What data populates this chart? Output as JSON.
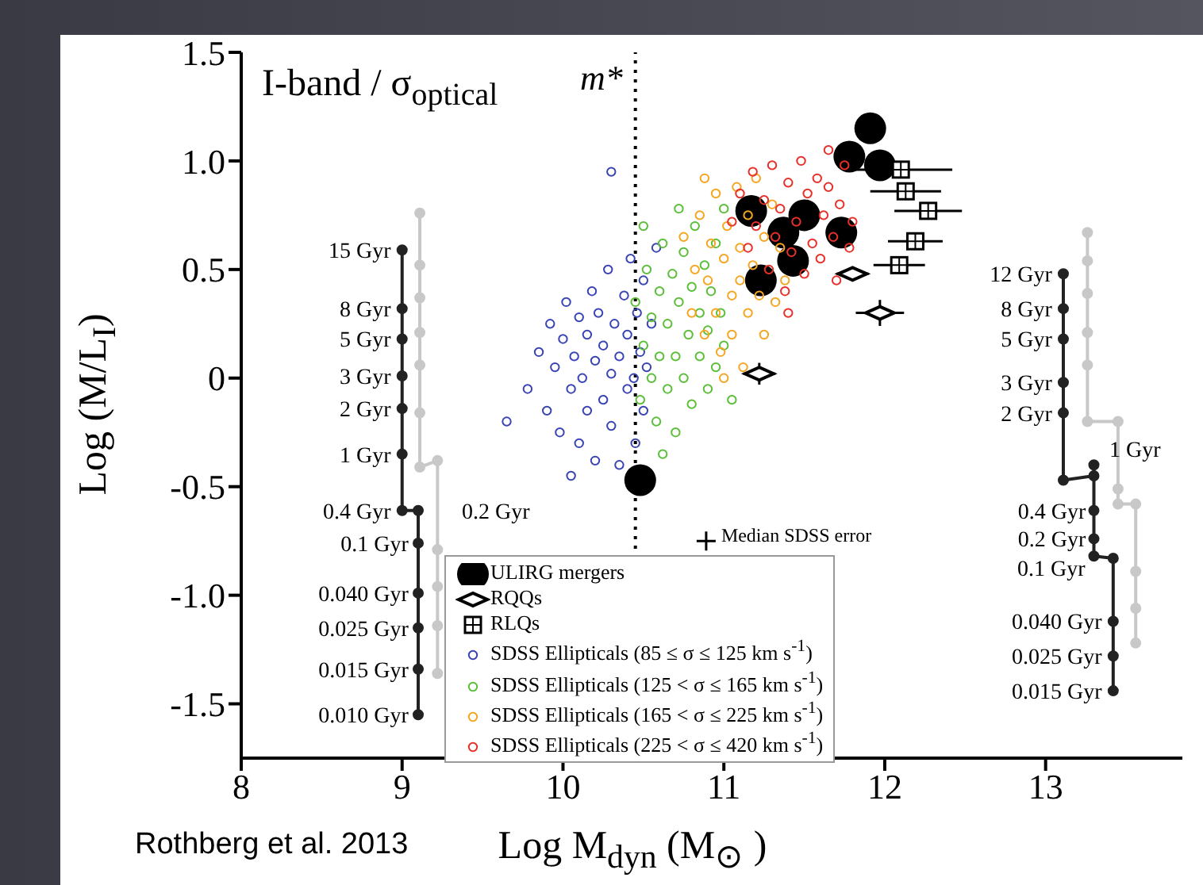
{
  "chart_data": {
    "type": "scatter",
    "title": "I-band / σ$_{optical}$",
    "xlabel": "Log M$_{dyn}$ (M$_{⊙}$ )",
    "ylabel": "Log (M/L$_{I}$)",
    "xlim": [
      8,
      13.85
    ],
    "xticks": [
      8,
      9,
      10,
      11,
      12,
      13
    ],
    "ylim": [
      -1.75,
      1.5
    ],
    "yticks": [
      -1.5,
      {
        "value": -1,
        "label": "-1.0"
      },
      -0.5,
      0,
      0.5,
      {
        "value": 1,
        "label": "1.0"
      },
      1.5
    ],
    "legend": "bottom",
    "ref_lines": [
      {
        "axis": "x",
        "value": 10.45,
        "label": "m*",
        "line_style": "dotted",
        "color": "#000000"
      }
    ],
    "series": [
      {
        "name": "ULIRG mergers",
        "color": "#000000",
        "marker": "circle",
        "x": [
          11.91,
          11.78,
          11.97,
          11.17,
          11.5,
          11.37,
          11.73,
          11.43,
          11.23,
          10.48
        ],
        "values": [
          1.15,
          1.02,
          0.98,
          0.77,
          0.75,
          0.67,
          0.67,
          0.54,
          0.45,
          -0.47
        ]
      },
      {
        "name": "RQQs",
        "color": "#000000",
        "marker": "diamond",
        "x": [
          11.8,
          11.97,
          11.22
        ],
        "values": [
          0.48,
          0.3,
          0.02
        ],
        "xerrors": [
          0.1,
          0.15,
          0.1
        ],
        "errors": [
          null,
          0.06,
          0.05
        ]
      },
      {
        "name": "RLQs",
        "color": "#000000",
        "marker": "square",
        "x": [
          12.1,
          12.13,
          12.27,
          12.19,
          12.09
        ],
        "values": [
          0.96,
          0.86,
          0.77,
          0.63,
          0.52
        ],
        "xerrors": [
          0.32,
          0.22,
          0.21,
          0.17,
          0.16
        ]
      },
      {
        "name": "SDSS Ellipticals (85 ≤ σ ≤ 125 km s$^{-1}$)",
        "color": "#3a45b5",
        "marker": "circle",
        "x": [
          9.78,
          9.85,
          9.9,
          9.92,
          9.95,
          9.98,
          10.0,
          10.02,
          10.05,
          10.07,
          10.1,
          10.1,
          10.12,
          10.15,
          10.15,
          10.18,
          10.2,
          10.2,
          10.22,
          10.25,
          10.25,
          10.28,
          10.3,
          10.3,
          10.32,
          10.35,
          10.35,
          10.38,
          10.4,
          10.4,
          10.42,
          10.44,
          10.45,
          10.46,
          10.48,
          10.5,
          10.5,
          10.52,
          10.55,
          10.58,
          10.3,
          9.65,
          10.05
        ],
        "values": [
          -0.05,
          0.12,
          -0.15,
          0.25,
          0.05,
          -0.25,
          0.18,
          0.35,
          -0.05,
          0.1,
          0.28,
          -0.3,
          0.0,
          0.2,
          -0.15,
          0.4,
          0.08,
          -0.38,
          0.3,
          -0.1,
          0.15,
          0.5,
          0.02,
          -0.22,
          0.25,
          0.1,
          -0.4,
          0.38,
          -0.05,
          0.2,
          0.55,
          0.0,
          -0.3,
          0.3,
          0.12,
          -0.15,
          0.45,
          0.05,
          0.25,
          0.6,
          0.95,
          -0.2,
          -0.45
        ]
      },
      {
        "name": "SDSS Ellipticals (125 < σ ≤ 165 km s$^{-1}$)",
        "color": "#5cbf3a",
        "marker": "circle",
        "x": [
          10.45,
          10.48,
          10.5,
          10.52,
          10.55,
          10.55,
          10.58,
          10.6,
          10.6,
          10.62,
          10.65,
          10.65,
          10.68,
          10.7,
          10.7,
          10.72,
          10.75,
          10.75,
          10.78,
          10.8,
          10.8,
          10.82,
          10.85,
          10.85,
          10.88,
          10.9,
          10.9,
          10.92,
          10.95,
          10.95,
          10.98,
          11.0,
          11.0,
          10.5,
          10.62,
          10.72,
          11.05
        ],
        "values": [
          0.35,
          -0.1,
          0.15,
          0.5,
          0.0,
          0.28,
          -0.2,
          0.4,
          0.1,
          0.62,
          -0.05,
          0.25,
          0.48,
          0.1,
          -0.25,
          0.35,
          0.0,
          0.58,
          0.2,
          0.42,
          -0.12,
          0.7,
          0.1,
          0.3,
          0.52,
          -0.05,
          0.22,
          0.4,
          0.62,
          0.05,
          0.3,
          0.78,
          0.15,
          0.7,
          -0.35,
          0.78,
          -0.1
        ]
      },
      {
        "name": "SDSS Ellipticals (165 < σ ≤ 225 km s$^{-1}$)",
        "color": "#f5a623",
        "marker": "circle",
        "x": [
          10.75,
          10.8,
          10.82,
          10.85,
          10.88,
          10.9,
          10.92,
          10.95,
          10.95,
          10.98,
          11.0,
          11.02,
          11.05,
          11.05,
          11.08,
          11.1,
          11.1,
          11.12,
          11.15,
          11.15,
          11.18,
          11.2,
          11.22,
          11.25,
          11.25,
          11.3,
          11.32,
          11.35,
          11.38,
          11.0,
          10.88
        ],
        "values": [
          0.65,
          0.3,
          0.5,
          0.75,
          0.2,
          0.45,
          0.62,
          0.85,
          0.3,
          0.12,
          0.55,
          0.7,
          0.38,
          0.2,
          0.88,
          0.6,
          0.45,
          0.05,
          0.3,
          0.75,
          0.52,
          0.92,
          0.38,
          0.65,
          0.2,
          0.8,
          0.35,
          0.6,
          0.45,
          0.0,
          0.92
        ]
      },
      {
        "name": "SDSS Ellipticals (225 < σ ≤ 420 km s$^{-1}$)",
        "color": "#e8312a",
        "marker": "circle",
        "x": [
          11.05,
          11.1,
          11.15,
          11.18,
          11.2,
          11.25,
          11.28,
          11.3,
          11.32,
          11.35,
          11.38,
          11.4,
          11.42,
          11.45,
          11.48,
          11.5,
          11.52,
          11.55,
          11.58,
          11.6,
          11.62,
          11.65,
          11.68,
          11.7,
          11.72,
          11.75,
          11.78,
          11.8,
          11.4,
          11.65
        ],
        "values": [
          0.72,
          0.85,
          0.6,
          0.95,
          0.7,
          0.82,
          0.5,
          0.98,
          0.65,
          0.78,
          0.4,
          0.9,
          0.58,
          0.72,
          1.0,
          0.48,
          0.85,
          0.62,
          0.92,
          0.55,
          0.75,
          0.88,
          0.65,
          0.45,
          0.8,
          0.98,
          0.6,
          0.72,
          0.3,
          1.05
        ]
      },
      {
        "name": "Median SDSS error",
        "color": "#000000",
        "marker": "cross",
        "x": [
          10.89
        ],
        "values": [
          -0.75
        ]
      },
      {
        "type": "line",
        "color": "#222222",
        "marker": "circle",
        "x": [
          9.0,
          9.0,
          9.0,
          9.0,
          9.0,
          9.0,
          9.0,
          9.1,
          9.1,
          9.1,
          9.1,
          9.1,
          9.1
        ],
        "values": [
          0.59,
          0.32,
          0.18,
          0.01,
          -0.14,
          -0.35,
          -0.61,
          -0.61,
          -0.76,
          -0.99,
          -1.15,
          -1.34,
          -1.55
        ]
      },
      {
        "type": "line",
        "color": "#c8c8c8",
        "marker": "circle",
        "x": [
          9.11,
          9.11,
          9.11,
          9.11,
          9.11,
          9.11,
          9.11,
          9.22,
          9.22,
          9.22,
          9.22,
          9.22
        ],
        "values": [
          0.76,
          0.52,
          0.37,
          0.21,
          0.06,
          -0.16,
          -0.41,
          -0.38,
          -0.79,
          -0.96,
          -1.14,
          -1.36
        ]
      },
      {
        "type": "line",
        "color": "#222222",
        "marker": "circle",
        "x": [
          13.11,
          13.11,
          13.11,
          13.11,
          13.11,
          13.11,
          13.3,
          13.3,
          13.3,
          13.3,
          13.3,
          13.42,
          13.42,
          13.42,
          13.42
        ],
        "values": [
          0.48,
          0.32,
          0.18,
          -0.02,
          -0.16,
          -0.47,
          -0.45,
          -0.4,
          -0.61,
          -0.74,
          -0.82,
          -0.83,
          -1.12,
          -1.28,
          -1.44
        ]
      },
      {
        "type": "line",
        "color": "#c8c8c8",
        "marker": "circle",
        "x": [
          13.26,
          13.26,
          13.26,
          13.26,
          13.26,
          13.26,
          13.45,
          13.45,
          13.45,
          13.56,
          13.56,
          13.56,
          13.56
        ],
        "values": [
          0.67,
          0.54,
          0.39,
          0.21,
          0.06,
          -0.2,
          -0.2,
          -0.51,
          -0.58,
          -0.58,
          -0.89,
          -1.06,
          -1.22
        ]
      }
    ],
    "annotations": [
      "Rothberg et al. 2013",
      {
        "text": "15 Gyr",
        "x": 8.93,
        "y": 0.59
      },
      {
        "text": "8 Gyr",
        "x": 8.93,
        "y": 0.32
      },
      {
        "text": "5 Gyr",
        "x": 8.93,
        "y": 0.18
      },
      {
        "text": "3 Gyr",
        "x": 8.93,
        "y": 0.01
      },
      {
        "text": "2 Gyr",
        "x": 8.93,
        "y": -0.14
      },
      {
        "text": "1 Gyr",
        "x": 8.93,
        "y": -0.35
      },
      {
        "text": "0.4 Gyr",
        "x": 8.93,
        "y": -0.61
      },
      "0.2 Gyr",
      {
        "text": "0.1 Gyr",
        "x": 9.04,
        "y": -0.76
      },
      {
        "text": "0.040 Gyr",
        "x": 9.04,
        "y": -0.99
      },
      {
        "text": "0.025 Gyr",
        "x": 9.04,
        "y": -1.15
      },
      {
        "text": "0.015 Gyr",
        "x": 9.04,
        "y": -1.34
      },
      {
        "text": "0.010 Gyr",
        "x": 9.04,
        "y": -1.55
      },
      {
        "text": "12 Gyr",
        "x": 13.04,
        "y": 0.48
      },
      {
        "text": "8 Gyr",
        "x": 13.04,
        "y": 0.32
      },
      {
        "text": "5 Gyr",
        "x": 13.04,
        "y": 0.18
      },
      {
        "text": "3 Gyr",
        "x": 13.04,
        "y": -0.02
      },
      {
        "text": "2 Gyr",
        "x": 13.04,
        "y": -0.16
      },
      "1 Gyr",
      {
        "text": "0.4 Gyr",
        "x": 13.25,
        "y": -0.61
      },
      {
        "text": "0.2 Gyr",
        "x": 13.25,
        "y": -0.74
      },
      "0.1 Gyr",
      {
        "text": "0.040 Gyr",
        "x": 13.35,
        "y": -1.12
      },
      {
        "text": "0.025 Gyr",
        "x": 13.35,
        "y": -1.28
      },
      {
        "text": "0.015 Gyr",
        "x": 13.35,
        "y": -1.44
      }
    ]
  }
}
